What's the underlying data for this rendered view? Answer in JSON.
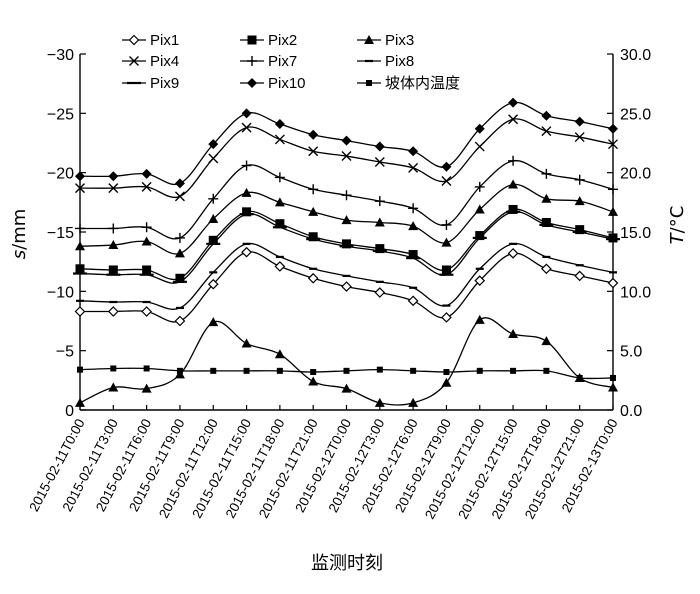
{
  "chart_data": {
    "type": "line",
    "x_title": "监测时刻",
    "x_tick_labels": [
      "2015-02-11T0:00",
      "2015-02-11T3:00",
      "2015-02-11T6:00",
      "2015-02-11T9:00",
      "2015-02-11T12:00",
      "2015-02-11T15:00",
      "2015-02-11T18:00",
      "2015-02-11T21:00",
      "2015-02-12T0:00",
      "2015-02-12T3:00",
      "2015-02-12T6:00",
      "2015-02-12T9:00",
      "2015-02-12T12:00",
      "2015-02-12T15:00",
      "2015-02-12T18:00",
      "2015-02-12T21:00",
      "2015-02-13T0:00"
    ],
    "left_axis": {
      "title_italic": "s",
      "title_rest": "/mm",
      "ylim": [
        0,
        -30
      ],
      "ticks": [
        0,
        -5,
        -10,
        -15,
        -20,
        -25,
        -30
      ],
      "tick_labels": [
        "0",
        "−5",
        "−10",
        "−15",
        "−20",
        "−25",
        "−30"
      ]
    },
    "right_axis": {
      "title_italic": "T",
      "title_rest": "/°C",
      "ylim": [
        0,
        30
      ],
      "ticks": [
        0,
        5,
        10,
        15,
        20,
        25,
        30
      ],
      "tick_labels": [
        "0.0",
        "5.0",
        "10.0",
        "15.0",
        "20.0",
        "25.0",
        "30.0"
      ]
    },
    "legend_position": "top",
    "series": [
      {
        "name": "Pix1",
        "marker": "diamond-open",
        "axis": "left",
        "values": [
          -8.3,
          -8.3,
          -8.3,
          -7.5,
          -10.6,
          -13.3,
          -12.1,
          -11.1,
          -10.4,
          -9.9,
          -9.2,
          -7.8,
          -10.9,
          -13.2,
          -11.9,
          -11.3,
          -10.7
        ]
      },
      {
        "name": "Pix2",
        "marker": "square-filled",
        "axis": "left",
        "values": [
          -11.9,
          -11.8,
          -11.8,
          -11.1,
          -14.3,
          -16.7,
          -15.7,
          -14.6,
          -14.0,
          -13.6,
          -13.1,
          -11.8,
          -14.7,
          -16.9,
          -15.8,
          -15.2,
          -14.5
        ]
      },
      {
        "name": "Pix3",
        "marker": "triangle-filled",
        "axis": "left",
        "values": [
          -13.8,
          -13.9,
          -14.2,
          -13.2,
          -16.1,
          -18.3,
          -17.5,
          -16.7,
          -16.0,
          -15.8,
          -15.5,
          -14.1,
          -16.9,
          -19.0,
          -17.8,
          -17.6,
          -16.7
        ]
      },
      {
        "name": "Pix4",
        "marker": "x",
        "axis": "left",
        "values": [
          -18.7,
          -18.7,
          -18.8,
          -18.0,
          -21.2,
          -23.8,
          -22.8,
          -21.8,
          -21.4,
          -20.9,
          -20.4,
          -19.3,
          -22.2,
          -24.5,
          -23.5,
          -23.0,
          -22.4
        ]
      },
      {
        "name": "Pix7",
        "marker": "plus",
        "axis": "left",
        "values": [
          -15.3,
          -15.3,
          -15.4,
          -14.5,
          -17.8,
          -20.6,
          -19.6,
          -18.6,
          -18.1,
          -17.6,
          -17.0,
          -15.6,
          -18.8,
          -21.0,
          -19.9,
          -19.4,
          -18.6
        ]
      },
      {
        "name": "Pix8",
        "marker": "dash-short",
        "axis": "left",
        "values": [
          -9.2,
          -9.1,
          -9.1,
          -8.6,
          -11.6,
          -14.0,
          -12.9,
          -11.9,
          -11.3,
          -10.8,
          -10.3,
          -8.8,
          -11.9,
          -14.0,
          -12.9,
          -12.2,
          -11.6
        ]
      },
      {
        "name": "Pix9",
        "marker": "dash-long",
        "axis": "left",
        "values": [
          -11.5,
          -11.4,
          -11.4,
          -10.8,
          -14.0,
          -16.5,
          -15.4,
          -14.4,
          -13.8,
          -13.4,
          -12.8,
          -11.4,
          -14.5,
          -16.7,
          -15.6,
          -15.0,
          -14.4
        ]
      },
      {
        "name": "Pix10",
        "marker": "diamond-filled",
        "axis": "left",
        "values": [
          -19.7,
          -19.7,
          -19.9,
          -19.1,
          -22.4,
          -25.0,
          -24.1,
          -23.2,
          -22.7,
          -22.2,
          -21.8,
          -20.5,
          -23.7,
          -25.9,
          -24.8,
          -24.3,
          -23.7
        ]
      },
      {
        "name": "坡体内温度",
        "marker": "square-small",
        "axis": "left",
        "values": [
          -3.4,
          -3.5,
          -3.5,
          -3.3,
          -3.3,
          -3.3,
          -3.3,
          -3.2,
          -3.3,
          -3.4,
          -3.3,
          -3.2,
          -3.3,
          -3.3,
          -3.3,
          -2.7,
          -2.7
        ]
      },
      {
        "name": "",
        "marker": "triangle-filled",
        "axis": "right",
        "values": [
          0.6,
          1.9,
          1.8,
          3.0,
          7.4,
          5.6,
          4.7,
          2.4,
          1.8,
          0.6,
          0.6,
          2.3,
          7.6,
          6.4,
          5.8,
          2.7,
          1.9
        ]
      }
    ]
  }
}
